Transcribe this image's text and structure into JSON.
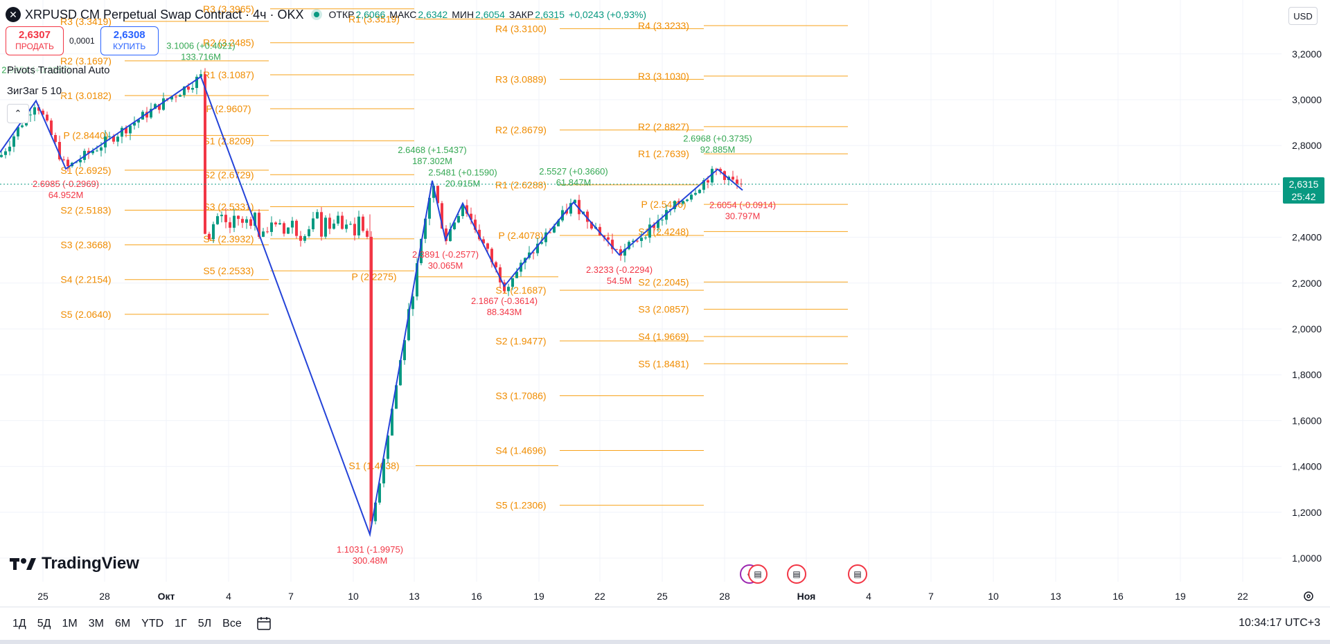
{
  "header": {
    "symbol_icon": "x-logo-icon",
    "title": "XRPUSD CM Perpetual Swap Contract · 4ч · OKX",
    "ohlc": {
      "open_label": "ОТКР",
      "open": "2,6066",
      "high_label": "МАКС",
      "high": "2,6342",
      "low_label": "МИН",
      "low": "2,6054",
      "close_label": "ЗАКР",
      "close": "2,6315",
      "change": "+0,0243 (+0,93%)"
    }
  },
  "trade": {
    "sell_price": "2,6307",
    "sell_label": "ПРОДАТЬ",
    "spread": "0,0001",
    "buy_price": "2,6308",
    "buy_label": "КУПИТЬ"
  },
  "indicators": {
    "pivots": "Pivots Traditional Auto",
    "zigzag": "ЗигЗаг 5 10"
  },
  "currency": "USD",
  "last_price": {
    "price": "2,6315",
    "countdown": "25:42"
  },
  "logo_text": "TradingView",
  "price_axis": [
    "3,2000",
    "3,0000",
    "2,8000",
    "2,6000",
    "2,4000",
    "2,2000",
    "2,0000",
    "1,8000",
    "1,6000",
    "1,4000",
    "1,2000",
    "1,0000"
  ],
  "time_axis": [
    "25",
    "28",
    "Окт",
    "4",
    "7",
    "10",
    "13",
    "16",
    "19",
    "22",
    "25",
    "28",
    "Ноя",
    "4",
    "7",
    "10",
    "13",
    "16",
    "19",
    "22"
  ],
  "range_buttons": [
    "1Д",
    "5Д",
    "1М",
    "3М",
    "6М",
    "YTD",
    "1Г",
    "5Л",
    "Все"
  ],
  "clock": "10:34:17 UTC+3",
  "pivot_labels": {
    "g1": [
      "P (2.8440)",
      "S1 (2.6925)",
      "S2 (2.5183)",
      "S3 (2.3668)",
      "S4 (2.2154)",
      "S5 (2.0640)",
      "R1 (3.0182)",
      "R2 (3.1697)",
      "R3 (3.3419)"
    ],
    "g2": [
      "R3 (3.3965)",
      "R2 (3.2485)",
      "R1 (3.1087)",
      "P (2.9607)",
      "S1 (2.8209)",
      "S2 (2.6729)",
      "S3 (2.5331)",
      "S4 (2.3932)",
      "S5 (2.2533)"
    ],
    "g3": [
      "R1 (3.3519)",
      "P (2.2275)",
      "S1 (1.4038)"
    ],
    "g4": [
      "R4 (3.3100)",
      "R3 (3.0889)",
      "R2 (2.8679)",
      "R1 (2.6288)",
      "P (2.4078)",
      "S1 (2.1687)",
      "S2 (1.9477)",
      "S3 (1.7086)",
      "S4 (1.4696)",
      "S5 (1.2306)"
    ],
    "g5": [
      "R4 (3.3233)",
      "R3 (3.1030)",
      "R2 (2.8827)",
      "R1 (2.7639)",
      "P (2.5436)",
      "S1 (2.4248)",
      "S2 (2.2045)",
      "S3 (2.0857)",
      "S4 (1.9669)",
      "S5 (1.8481)"
    ]
  },
  "zigzag_labels": [
    {
      "price": "2.9954 (+0.3257)",
      "vol": "",
      "dir": "up"
    },
    {
      "price": "3.1006 (+0.4021)",
      "vol": "133.716M",
      "dir": "up"
    },
    {
      "price": "2.6985 (-0.2969)",
      "vol": "64.952M",
      "dir": "dn"
    },
    {
      "price": "2.6468 (+1.5437)",
      "vol": "187.302M",
      "dir": "up"
    },
    {
      "price": "2.5481 (+0.1590)",
      "vol": "20.915M",
      "dir": "up"
    },
    {
      "price": "2.5527 (+0.3660)",
      "vol": "61.847M",
      "dir": "up"
    },
    {
      "price": "2.6968 (+0.3735)",
      "vol": "92.885M",
      "dir": "up"
    },
    {
      "price": "2.6054 (-0.0914)",
      "vol": "30.797M",
      "dir": "dn"
    },
    {
      "price": "2.3891 (-0.2577)",
      "vol": "30.065M",
      "dir": "dn"
    },
    {
      "price": "2.3233 (-0.2294)",
      "vol": "54.5M",
      "dir": "dn"
    },
    {
      "price": "2.1867 (-0.3614)",
      "vol": "88.343M",
      "dir": "dn"
    },
    {
      "price": "1.1031 (-1.9975)",
      "vol": "300.48M",
      "dir": "dn"
    }
  ],
  "chart_data": {
    "type": "candlestick",
    "y_range": [
      0.95,
      3.4
    ],
    "zigzag_points": [
      {
        "x": "Сен 24",
        "y": 2.9954
      },
      {
        "x": "Сен 26",
        "y": 2.6985
      },
      {
        "x": "Окт 2",
        "y": 3.1006
      },
      {
        "x": "Окт 10",
        "y": 1.1031
      },
      {
        "x": "Окт 13",
        "y": 2.6468
      },
      {
        "x": "Окт 14",
        "y": 2.3891
      },
      {
        "x": "Окт 15",
        "y": 2.5481
      },
      {
        "x": "Окт 17",
        "y": 2.1867
      },
      {
        "x": "Окт 21",
        "y": 2.5527
      },
      {
        "x": "Окт 23",
        "y": 2.3233
      },
      {
        "x": "Окт 27",
        "y": 2.6968
      },
      {
        "x": "Окт 29",
        "y": 2.6054
      }
    ]
  }
}
